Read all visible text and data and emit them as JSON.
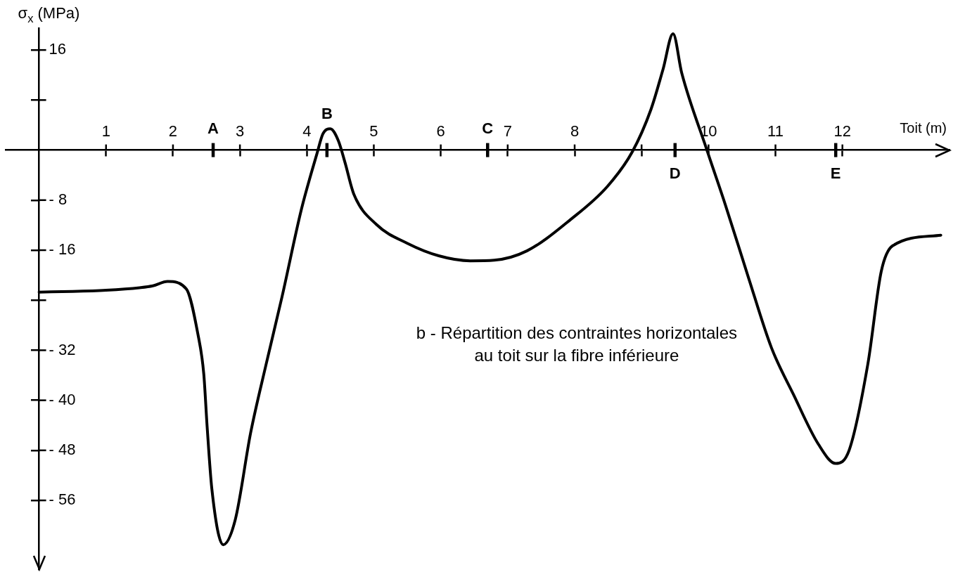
{
  "chart_data": {
    "type": "line",
    "xlabel": "Toit (m)",
    "ylabel": "σ$_{x}$ (MPa)",
    "annotations": [
      "b - Répartition des contraintes horizontales\nau toit sur la fibre inférieure"
    ],
    "ref_lines": [
      {
        "axis": "x",
        "value": 2.6,
        "label": "A"
      },
      {
        "axis": "x",
        "value": 4.3,
        "label": "B"
      },
      {
        "axis": "x",
        "value": 6.7,
        "label": "C"
      },
      {
        "axis": "x",
        "value": 9.5,
        "label": "D"
      },
      {
        "axis": "x",
        "value": 11.9,
        "label": "E"
      }
    ],
    "series": [
      {
        "color": "#000000",
        "x": [
          0,
          0.5,
          1,
          1.5,
          1.7,
          1.92,
          2.2,
          2.37,
          2.46,
          2.51,
          2.58,
          2.75,
          2.93,
          3.16,
          3.39,
          3.63,
          3.92,
          4.15,
          4.24,
          4.35,
          4.47,
          4.57,
          4.7,
          5.04,
          5.5,
          5.97,
          6.44,
          6.8,
          7.29,
          7.94,
          8.49,
          8.86,
          9.14,
          9.32,
          9.47,
          9.6,
          9.97,
          10.25,
          10.6,
          10.94,
          11.27,
          11.64,
          11.9,
          12.1,
          12.38,
          12.58,
          12.75,
          13.47
        ],
        "values": [
          -22.7,
          -22.6,
          -22.4,
          -22.0,
          -21.7,
          -21.0,
          -22.2,
          -29.3,
          -35.8,
          -44.2,
          -54.1,
          -63.1,
          -59.1,
          -45.2,
          -34.3,
          -23.4,
          -9.4,
          -0.6,
          2.6,
          3.4,
          1.5,
          -2,
          -7,
          -11.9,
          -14.9,
          -16.9,
          -17.7,
          -17.6,
          -16.1,
          -11.1,
          -5.8,
          -0.3,
          6.5,
          12.9,
          18.6,
          12.3,
          0.2,
          -8.7,
          -20.5,
          -31.6,
          -39.1,
          -47,
          -50.1,
          -48,
          -34.2,
          -19.4,
          -15.3,
          -13.6
        ]
      }
    ],
    "xlim": [
      -0.5,
      13.6
    ],
    "ylim": [
      -67,
      19.5
    ],
    "xticks": [
      1,
      2,
      3,
      4,
      5,
      6,
      7,
      8,
      {
        "value": 9,
        "label": null
      },
      10,
      11,
      12
    ],
    "yticks": [
      16,
      {
        "value": 8,
        "label": null
      },
      {
        "value": -8,
        "label": "- 8"
      },
      {
        "value": -16,
        "label": "- 16"
      },
      {
        "value": -24,
        "label": null
      },
      {
        "value": -32,
        "label": "- 32"
      },
      {
        "value": -40,
        "label": "- 40"
      },
      {
        "value": -48,
        "label": "- 48"
      },
      {
        "value": -56,
        "label": "- 56"
      }
    ]
  }
}
